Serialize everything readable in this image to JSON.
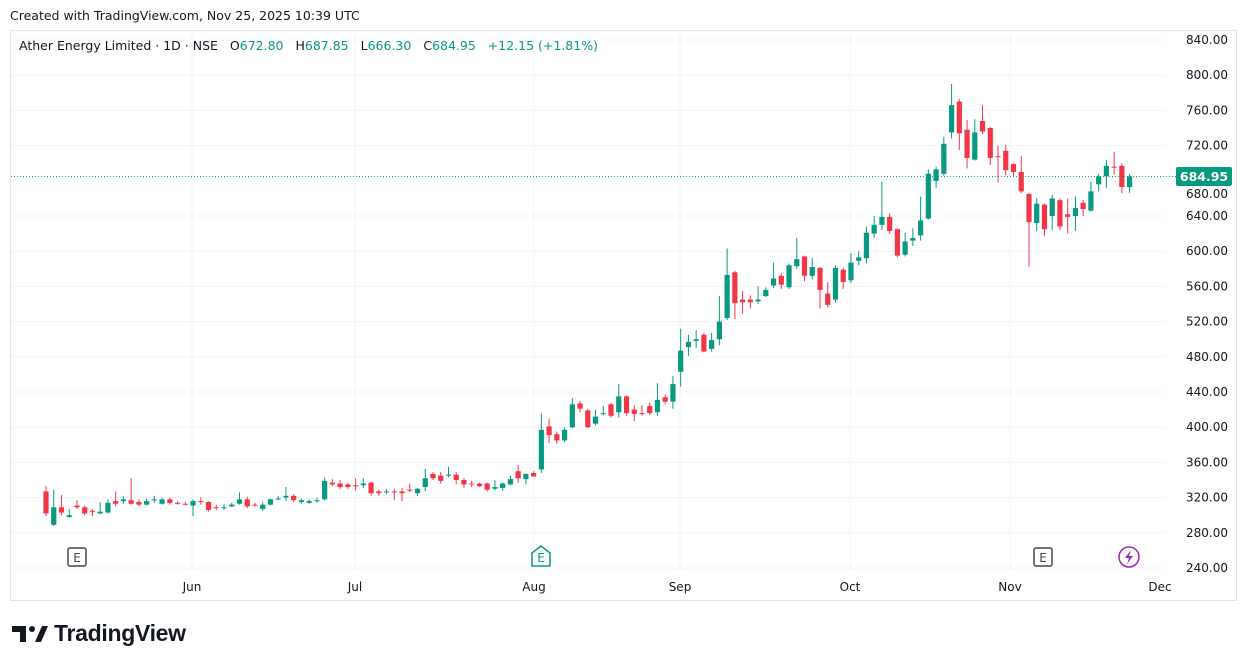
{
  "header": {
    "created": "Created with TradingView.com, Nov 25, 2025 10:39 UTC"
  },
  "legend": {
    "title": "Ather Energy Limited · 1D · NSE",
    "open_label": "O",
    "open": "672.80",
    "high_label": "H",
    "high": "687.85",
    "low_label": "L",
    "low": "666.30",
    "close_label": "C",
    "close": "684.95",
    "change": "+12.15 (+1.81%)"
  },
  "brand": {
    "name": "TradingView"
  },
  "colors": {
    "up": "#089981",
    "down": "#f23645",
    "grid": "#f0f3fa",
    "event_purple": "#9c27b0"
  },
  "events": [
    {
      "icon": "earnings-icon",
      "label": "E"
    },
    {
      "icon": "earnings-icon",
      "label": "E"
    },
    {
      "icon": "earnings-icon",
      "label": "E"
    },
    {
      "icon": "lightning-icon",
      "label": ""
    }
  ],
  "chart_data": {
    "type": "candlestick",
    "title": "Ather Energy Limited · 1D · NSE",
    "ylim": [
      240,
      840
    ],
    "y_ticks": [
      "840.00",
      "800.00",
      "760.00",
      "720.00",
      "680.00",
      "640.00",
      "600.00",
      "560.00",
      "520.00",
      "480.00",
      "440.00",
      "400.00",
      "360.00",
      "320.00",
      "280.00",
      "240.00"
    ],
    "x_ticks": [
      "Jun",
      "Jul",
      "Aug",
      "Sep",
      "Oct",
      "Nov",
      "Dec"
    ],
    "last_price_label": "684.95",
    "last_price": 684.95,
    "ohlc_columns": [
      "open",
      "high",
      "low",
      "close"
    ],
    "candles": [
      [
        327,
        333,
        299,
        302
      ],
      [
        289,
        329,
        288,
        309
      ],
      [
        309,
        323,
        300,
        303
      ],
      [
        298,
        307,
        297,
        300
      ],
      [
        311,
        317,
        307,
        309
      ],
      [
        309,
        311,
        300,
        302
      ],
      [
        305,
        307,
        299,
        304
      ],
      [
        302,
        315,
        301,
        304
      ],
      [
        303,
        318,
        302,
        314
      ],
      [
        316,
        327,
        310,
        313
      ],
      [
        316,
        322,
        313,
        318
      ],
      [
        317,
        342,
        312,
        313
      ],
      [
        315,
        318,
        310,
        312
      ],
      [
        312,
        319,
        311,
        316
      ],
      [
        317,
        322,
        314,
        318
      ],
      [
        313,
        320,
        312,
        318
      ],
      [
        318,
        320,
        312,
        314
      ],
      [
        314,
        316,
        312,
        313
      ],
      [
        313,
        315,
        311,
        312
      ],
      [
        311,
        318,
        299,
        316
      ],
      [
        316,
        320,
        312,
        315
      ],
      [
        315,
        316,
        304,
        306
      ],
      [
        309,
        312,
        306,
        308
      ],
      [
        308,
        313,
        306,
        309
      ],
      [
        310,
        314,
        309,
        312
      ],
      [
        313,
        326,
        312,
        318
      ],
      [
        318,
        321,
        308,
        310
      ],
      [
        312,
        314,
        310,
        311
      ],
      [
        307,
        315,
        305,
        312
      ],
      [
        312,
        319,
        311,
        318
      ],
      [
        318,
        322,
        317,
        319
      ],
      [
        320,
        332,
        316,
        322
      ],
      [
        322,
        324,
        315,
        317
      ],
      [
        315,
        319,
        313,
        317
      ],
      [
        314,
        318,
        313,
        316
      ],
      [
        316,
        320,
        314,
        317
      ],
      [
        318,
        343,
        317,
        339
      ],
      [
        337,
        341,
        333,
        335
      ],
      [
        336,
        340,
        330,
        332
      ],
      [
        335,
        337,
        330,
        332
      ],
      [
        334,
        342,
        328,
        333
      ],
      [
        334,
        342,
        331,
        336
      ],
      [
        337,
        338,
        322,
        325
      ],
      [
        327,
        329,
        322,
        325
      ],
      [
        326,
        330,
        324,
        327
      ],
      [
        327,
        330,
        317,
        326
      ],
      [
        327,
        331,
        316,
        325
      ],
      [
        329,
        336,
        326,
        328
      ],
      [
        325,
        331,
        322,
        330
      ],
      [
        332,
        353,
        327,
        342
      ],
      [
        347,
        349,
        340,
        342
      ],
      [
        345,
        349,
        336,
        339
      ],
      [
        345,
        355,
        343,
        346
      ],
      [
        346,
        349,
        335,
        340
      ],
      [
        340,
        342,
        331,
        335
      ],
      [
        336,
        339,
        332,
        335
      ],
      [
        336,
        337,
        332,
        333
      ],
      [
        336,
        337,
        327,
        329
      ],
      [
        330,
        340,
        328,
        332
      ],
      [
        331,
        337,
        328,
        336
      ],
      [
        335,
        345,
        334,
        341
      ],
      [
        350,
        357,
        337,
        342
      ],
      [
        341,
        347,
        335,
        347
      ],
      [
        348,
        350,
        344,
        344
      ],
      [
        352,
        416,
        348,
        397
      ],
      [
        401,
        410,
        382,
        391
      ],
      [
        392,
        395,
        381,
        385
      ],
      [
        385,
        400,
        383,
        397
      ],
      [
        400,
        433,
        399,
        426
      ],
      [
        427,
        430,
        417,
        421
      ],
      [
        419,
        421,
        399,
        400
      ],
      [
        404,
        420,
        402,
        412
      ],
      [
        415,
        424,
        413,
        416
      ],
      [
        426,
        428,
        411,
        413
      ],
      [
        417,
        449,
        411,
        435
      ],
      [
        435,
        436,
        413,
        416
      ],
      [
        420,
        425,
        407,
        415
      ],
      [
        416,
        425,
        413,
        415
      ],
      [
        424,
        428,
        414,
        416
      ],
      [
        417,
        450,
        413,
        431
      ],
      [
        434,
        437,
        426,
        429
      ],
      [
        429,
        458,
        421,
        449
      ],
      [
        463,
        512,
        446,
        487
      ],
      [
        491,
        505,
        481,
        497
      ],
      [
        498,
        510,
        490,
        500
      ],
      [
        505,
        507,
        485,
        486
      ],
      [
        489,
        507,
        486,
        499
      ],
      [
        500,
        549,
        493,
        520
      ],
      [
        524,
        603,
        522,
        573
      ],
      [
        576,
        578,
        523,
        541
      ],
      [
        545,
        555,
        529,
        542
      ],
      [
        545,
        550,
        535,
        542
      ],
      [
        543,
        560,
        540,
        545
      ],
      [
        549,
        559,
        548,
        556
      ],
      [
        561,
        587,
        558,
        569
      ],
      [
        572,
        575,
        557,
        562
      ],
      [
        559,
        586,
        557,
        584
      ],
      [
        583,
        615,
        580,
        591
      ],
      [
        594,
        595,
        566,
        572
      ],
      [
        572,
        592,
        568,
        582
      ],
      [
        581,
        582,
        535,
        556
      ],
      [
        552,
        565,
        536,
        539
      ],
      [
        545,
        584,
        542,
        581
      ],
      [
        579,
        581,
        557,
        565
      ],
      [
        567,
        598,
        564,
        587
      ],
      [
        589,
        600,
        584,
        593
      ],
      [
        592,
        628,
        586,
        621
      ],
      [
        620,
        640,
        615,
        630
      ],
      [
        630,
        679,
        624,
        639
      ],
      [
        639,
        643,
        620,
        623
      ],
      [
        625,
        626,
        593,
        595
      ],
      [
        596,
        621,
        594,
        611
      ],
      [
        612,
        626,
        606,
        615
      ],
      [
        618,
        662,
        612,
        635
      ],
      [
        637,
        693,
        636,
        688
      ],
      [
        680,
        696,
        672,
        693
      ],
      [
        688,
        730,
        686,
        722
      ],
      [
        735,
        790,
        728,
        766
      ],
      [
        770,
        773,
        715,
        734
      ],
      [
        738,
        749,
        694,
        706
      ],
      [
        704,
        750,
        703,
        735
      ],
      [
        748,
        766,
        733,
        736
      ],
      [
        740,
        741,
        698,
        706
      ],
      [
        708,
        720,
        678,
        707
      ],
      [
        714,
        721,
        686,
        692
      ],
      [
        699,
        700,
        685,
        690
      ],
      [
        690,
        708,
        666,
        668
      ],
      [
        665,
        666,
        582,
        633
      ],
      [
        632,
        660,
        623,
        654
      ],
      [
        653,
        654,
        617,
        625
      ],
      [
        640,
        664,
        624,
        660
      ],
      [
        658,
        660,
        624,
        628
      ],
      [
        642,
        660,
        620,
        639
      ],
      [
        640,
        662,
        623,
        649
      ],
      [
        655,
        658,
        640,
        648
      ],
      [
        646,
        679,
        645,
        668
      ],
      [
        676,
        688,
        668,
        685
      ],
      [
        685,
        704,
        672,
        697
      ],
      [
        696,
        713,
        687,
        695
      ],
      [
        697,
        700,
        666,
        673
      ],
      [
        672.8,
        687.85,
        666.3,
        684.95
      ]
    ]
  }
}
